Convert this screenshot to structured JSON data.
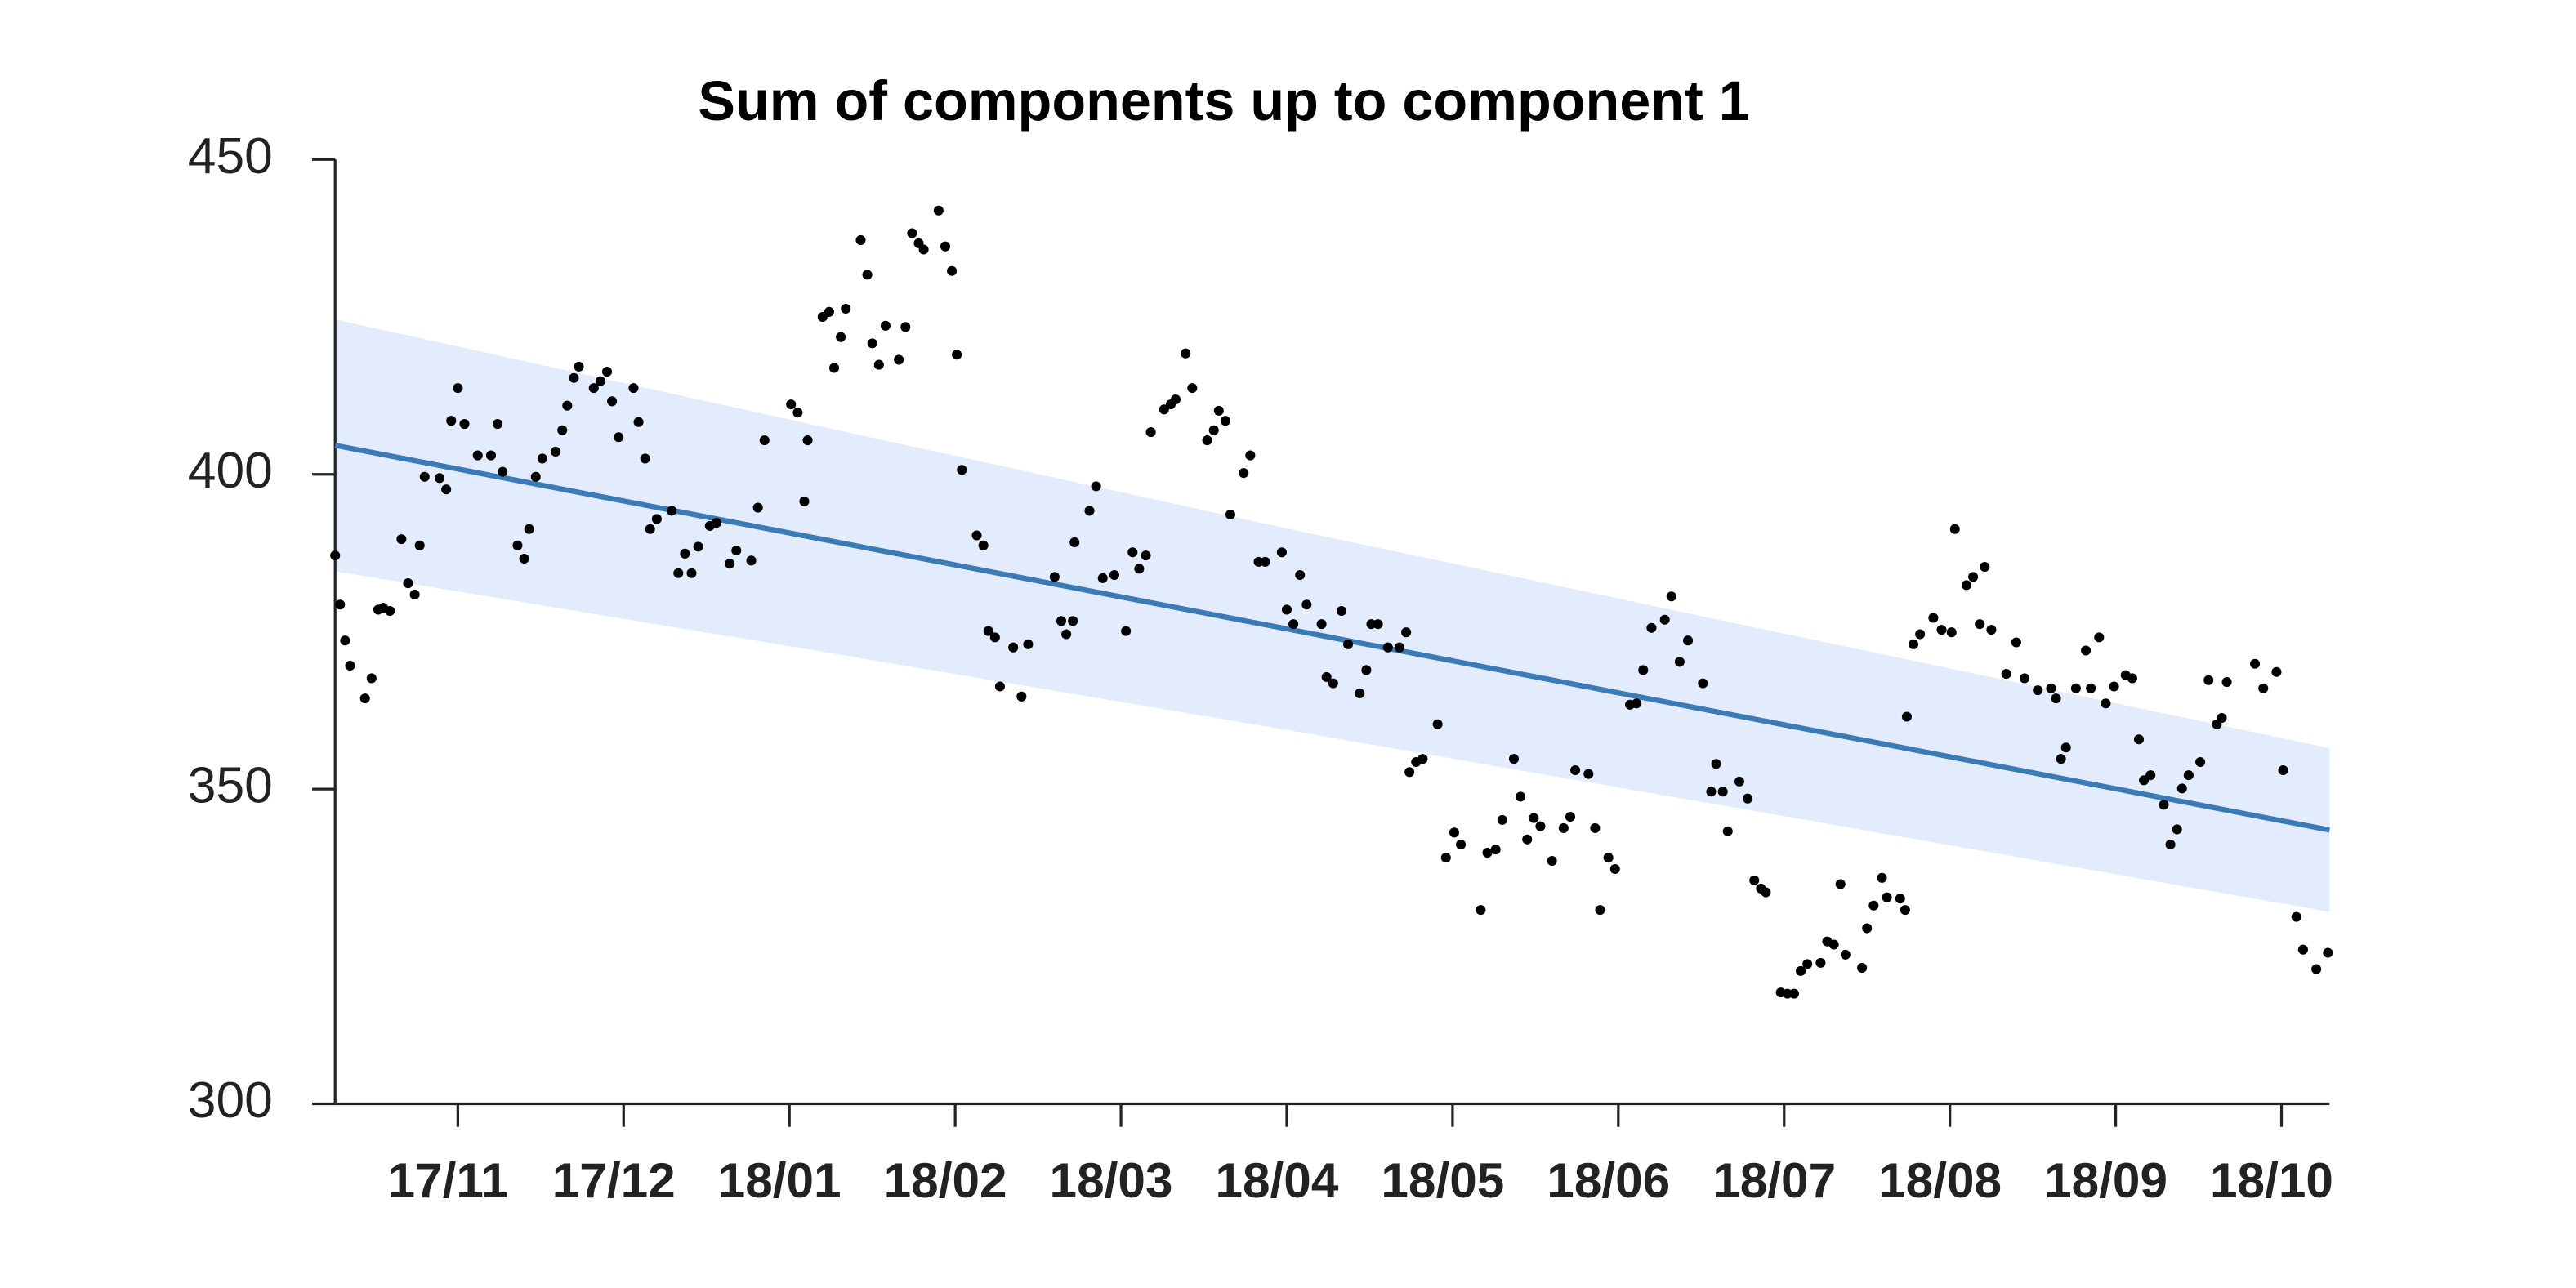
{
  "chart_data": {
    "type": "scatter",
    "title": "Sum of components up to component 1",
    "color": "#000000",
    "x": [
      10.26,
      10.29,
      10.32,
      10.35,
      10.44,
      10.48,
      10.52,
      10.55,
      10.59,
      10.66,
      10.7,
      10.74,
      10.77,
      10.8,
      10.89,
      10.93,
      10.96,
      11.0,
      11.04,
      11.12,
      11.2,
      11.24,
      11.27,
      11.36,
      11.4,
      11.43,
      11.47,
      11.51,
      11.59,
      11.63,
      11.66,
      11.7,
      11.73,
      11.82,
      11.86,
      11.9,
      11.93,
      11.97,
      12.06,
      12.09,
      12.13,
      12.16,
      12.2,
      12.29,
      12.33,
      12.37,
      12.41,
      12.45,
      12.52,
      12.56,
      12.64,
      12.68,
      12.77,
      12.81,
      12.85,
      13.01,
      13.05,
      13.09,
      13.11,
      13.2,
      13.24,
      13.27,
      13.31,
      13.34,
      13.43,
      13.47,
      13.5,
      13.54,
      13.58,
      13.66,
      13.7,
      13.74,
      13.78,
      13.81,
      13.9,
      13.94,
      13.98,
      14.01,
      14.04,
      14.13,
      14.17,
      14.2,
      14.24,
      14.27,
      14.35,
      14.4,
      14.44,
      14.6,
      14.64,
      14.67,
      14.71,
      14.72,
      14.81,
      14.85,
      14.89,
      14.96,
      15.03,
      15.07,
      15.11,
      15.15,
      15.18,
      15.26,
      15.3,
      15.33,
      15.39,
      15.43,
      15.52,
      15.56,
      15.59,
      15.63,
      15.66,
      15.74,
      15.78,
      15.83,
      15.87,
      15.97,
      16.0,
      16.04,
      16.08,
      16.12,
      16.21,
      16.24,
      16.28,
      16.33,
      16.37,
      16.44,
      16.48,
      16.51,
      16.55,
      16.61,
      16.68,
      16.72,
      16.74,
      16.78,
      16.82,
      16.91,
      16.96,
      17.01,
      17.05,
      17.17,
      17.21,
      17.26,
      17.3,
      17.37,
      17.41,
      17.45,
      17.49,
      17.53,
      17.6,
      17.67,
      17.71,
      17.74,
      17.82,
      17.86,
      17.89,
      17.94,
      17.98,
      18.07,
      18.11,
      18.15,
      18.2,
      18.28,
      18.32,
      18.37,
      18.42,
      18.51,
      18.56,
      18.59,
      18.63,
      18.66,
      18.73,
      18.78,
      18.82,
      18.86,
      18.89,
      18.98,
      19.02,
      19.06,
      19.1,
      19.14,
      19.22,
      19.26,
      19.3,
      19.34,
      19.37,
      19.47,
      19.5,
      19.54,
      19.59,
      19.62,
      19.7,
      19.73,
      19.74,
      19.78,
      19.82,
      19.9,
      19.95,
      20.01,
      20.03,
      20.1,
      20.14,
      20.21,
      20.18,
      20.25,
      20.34,
      20.4,
      20.45,
      20.53,
      20.61,
      20.64,
      20.67,
      20.7,
      20.76,
      20.85,
      20.82,
      20.9,
      20.94,
      20.99,
      21.06,
      21.1,
      21.14,
      21.17,
      21.21,
      21.29,
      21.33,
      21.37,
      21.4,
      21.44,
      21.51,
      21.56,
      21.61,
      21.64,
      21.67,
      21.84,
      21.89,
      21.97,
      22.01,
      22.09,
      22.13,
      22.21,
      22.28
    ],
    "values": [
      387.1,
      379.3,
      373.6,
      369.6,
      364.4,
      367.6,
      378.5,
      378.8,
      378.3,
      389.7,
      382.7,
      380.9,
      388.7,
      399.6,
      399.4,
      397.6,
      408.5,
      413.7,
      408.0,
      403.0,
      403.0,
      408.0,
      400.4,
      388.7,
      386.6,
      391.3,
      399.6,
      402.5,
      403.6,
      407.0,
      410.9,
      415.3,
      417.1,
      413.7,
      414.8,
      416.3,
      411.6,
      405.9,
      413.7,
      408.3,
      402.5,
      391.3,
      392.9,
      394.2,
      384.3,
      387.4,
      384.3,
      388.5,
      391.8,
      392.3,
      385.8,
      387.9,
      386.3,
      394.7,
      405.4,
      411.1,
      409.8,
      395.7,
      405.4,
      425.0,
      425.8,
      416.9,
      421.8,
      426.3,
      437.2,
      431.7,
      420.8,
      417.4,
      423.6,
      418.2,
      423.4,
      438.3,
      436.7,
      435.7,
      441.9,
      436.2,
      432.3,
      419.0,
      400.7,
      390.3,
      388.7,
      375.1,
      374.1,
      366.3,
      372.5,
      364.7,
      373.0,
      383.7,
      376.7,
      374.6,
      376.7,
      389.2,
      394.2,
      398.1,
      383.5,
      384.0,
      375.1,
      387.6,
      385.0,
      387.1,
      406.7,
      410.3,
      411.1,
      411.9,
      419.2,
      413.7,
      405.4,
      407.0,
      410.1,
      408.5,
      393.6,
      400.2,
      403.0,
      386.1,
      386.1,
      387.6,
      378.5,
      376.2,
      384.0,
      379.3,
      376.2,
      367.8,
      366.8,
      378.3,
      373.0,
      365.2,
      368.9,
      376.2,
      376.2,
      372.5,
      372.5,
      374.9,
      352.7,
      354.3,
      354.8,
      360.3,
      339.1,
      343.1,
      341.2,
      330.8,
      339.9,
      340.4,
      345.1,
      354.8,
      348.8,
      342.0,
      345.4,
      344.1,
      338.6,
      343.8,
      345.6,
      353.0,
      352.4,
      343.8,
      330.8,
      339.1,
      337.3,
      363.4,
      363.6,
      368.9,
      375.6,
      376.9,
      380.6,
      370.2,
      373.6,
      366.8,
      349.6,
      354.0,
      349.6,
      343.3,
      351.2,
      348.5,
      335.5,
      334.2,
      333.6,
      317.7,
      317.5,
      317.5,
      321.1,
      322.2,
      322.4,
      325.8,
      325.3,
      334.9,
      323.7,
      321.6,
      327.9,
      331.5,
      335.9,
      332.8,
      332.6,
      330.8,
      361.5,
      373.0,
      374.6,
      377.2,
      375.3,
      374.9,
      391.3,
      382.4,
      383.7,
      385.3,
      376.2,
      375.3,
      368.3,
      373.3,
      367.6,
      365.7,
      366.0,
      364.4,
      354.8,
      356.6,
      366.0,
      366.0,
      372.0,
      374.1,
      363.6,
      366.3,
      368.1,
      367.6,
      357.9,
      351.4,
      352.2,
      347.5,
      341.2,
      343.6,
      350.1,
      352.2,
      354.3,
      367.3,
      360.3,
      361.3,
      367.0,
      369.9,
      366.0,
      368.6,
      353.0,
      329.7,
      324.5,
      321.4,
      324.0
    ],
    "trend": {
      "color": "#3b7bb5",
      "x": [
        10.26,
        22.29
      ],
      "values": [
        404.6,
        343.5
      ]
    },
    "band": {
      "color": "#e2ecfd",
      "x": [
        10.26,
        13,
        16,
        19,
        22.29
      ],
      "upper": [
        424.6,
        408.7,
        391.4,
        374.7,
        356.5
      ],
      "lower": [
        384.6,
        372.7,
        359.4,
        345.7,
        330.5
      ]
    },
    "xlim": [
      10.26,
      22.29
    ],
    "xticks": [
      {
        "value": 11,
        "label": "17/11"
      },
      {
        "value": 12,
        "label": "17/12"
      },
      {
        "value": 13,
        "label": "18/01"
      },
      {
        "value": 14,
        "label": "18/02"
      },
      {
        "value": 15,
        "label": "18/03"
      },
      {
        "value": 16,
        "label": "18/04"
      },
      {
        "value": 17,
        "label": "18/05"
      },
      {
        "value": 18,
        "label": "18/06"
      },
      {
        "value": 19,
        "label": "18/07"
      },
      {
        "value": 20,
        "label": "18/08"
      },
      {
        "value": 21,
        "label": "18/09"
      },
      {
        "value": 22,
        "label": "18/10"
      }
    ],
    "ylim": [
      300,
      450
    ],
    "yticks": [
      300,
      350,
      400,
      450
    ],
    "grid": false
  }
}
